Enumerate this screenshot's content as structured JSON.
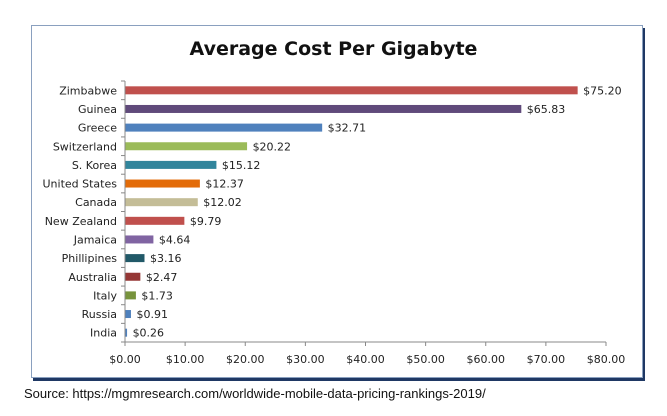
{
  "chart_data": {
    "type": "bar",
    "orientation": "horizontal",
    "title": "Average Cost Per Gigabyte",
    "categories": [
      "Zimbabwe",
      "Guinea",
      "Greece",
      "Switzerland",
      "S. Korea",
      "United States",
      "Canada",
      "New Zealand",
      "Jamaica",
      "Phillipines",
      "Australia",
      "Italy",
      "Russia",
      "India"
    ],
    "values": [
      75.2,
      65.83,
      32.71,
      20.22,
      15.12,
      12.37,
      12.02,
      9.79,
      4.64,
      3.16,
      2.47,
      1.73,
      0.91,
      0.26
    ],
    "data_labels": [
      "$75.20",
      "$65.83",
      "$32.71",
      "$20.22",
      "$15.12",
      "$12.37",
      "$12.02",
      "$9.79",
      "$4.64",
      "$3.16",
      "$2.47",
      "$1.73",
      "$0.91",
      "$0.26"
    ],
    "colors": [
      "#c0504d",
      "#604a7b",
      "#4f81bd",
      "#9bbb59",
      "#31859c",
      "#e36c09",
      "#c4bd97",
      "#c0504d",
      "#8064a2",
      "#215968",
      "#953735",
      "#77933c",
      "#4f81bd",
      "#4f81bd"
    ],
    "xlim": [
      0,
      80
    ],
    "xticks": [
      "$0.00",
      "$10.00",
      "$20.00",
      "$30.00",
      "$40.00",
      "$50.00",
      "$60.00",
      "$70.00",
      "$80.00"
    ],
    "xlabel": "",
    "ylabel": "",
    "grid": false,
    "legend": "none"
  },
  "source": "Source: https://mgmresearch.com/worldwide-mobile-data-pricing-rankings-2019/"
}
